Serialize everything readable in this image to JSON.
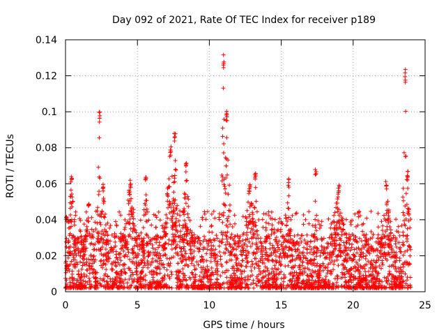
{
  "chart_data": {
    "type": "scatter",
    "title": "Day 092 of 2021, Rate Of TEC Index for receiver p189",
    "xlabel": "GPS time / hours",
    "ylabel": "ROTI / TECUs",
    "xlim": [
      0,
      25
    ],
    "ylim": [
      0,
      0.14
    ],
    "xticks": [
      0,
      5,
      10,
      15,
      20,
      25
    ],
    "yticks": [
      0,
      0.02,
      0.04,
      0.06,
      0.08,
      0.1,
      0.12,
      0.14
    ],
    "xtick_labels": [
      "0",
      "5",
      "10",
      "15",
      "20",
      "25"
    ],
    "ytick_labels": [
      "0",
      "0.02",
      "0.04",
      "0.06",
      "0.08",
      "0.1",
      "0.12",
      "0.14"
    ],
    "grid": true,
    "marker": "+",
    "marker_color": "#ff0000",
    "series": [
      {
        "name": "ROTI",
        "x_range": [
          0,
          24
        ],
        "baseline_max": 0.03,
        "bursts": [
          {
            "x": 0.4,
            "width": 0.3,
            "peak": 0.064
          },
          {
            "x": 1.6,
            "width": 0.4,
            "peak": 0.05
          },
          {
            "x": 2.35,
            "width": 0.15,
            "peak": 0.1
          },
          {
            "x": 2.6,
            "width": 0.3,
            "peak": 0.06
          },
          {
            "x": 4.5,
            "width": 0.5,
            "peak": 0.062
          },
          {
            "x": 5.6,
            "width": 0.3,
            "peak": 0.065
          },
          {
            "x": 7.3,
            "width": 0.4,
            "peak": 0.081
          },
          {
            "x": 7.6,
            "width": 0.2,
            "peak": 0.088
          },
          {
            "x": 8.4,
            "width": 0.4,
            "peak": 0.072
          },
          {
            "x": 11.0,
            "width": 0.15,
            "peak": 0.133
          },
          {
            "x": 11.2,
            "width": 0.25,
            "peak": 0.103
          },
          {
            "x": 12.8,
            "width": 0.5,
            "peak": 0.06
          },
          {
            "x": 13.2,
            "width": 0.2,
            "peak": 0.068
          },
          {
            "x": 15.5,
            "width": 0.3,
            "peak": 0.063
          },
          {
            "x": 17.4,
            "width": 0.1,
            "peak": 0.068
          },
          {
            "x": 19.0,
            "width": 0.6,
            "peak": 0.06
          },
          {
            "x": 22.3,
            "width": 0.4,
            "peak": 0.062
          },
          {
            "x": 23.6,
            "width": 0.15,
            "peak": 0.125
          },
          {
            "x": 23.8,
            "width": 0.3,
            "peak": 0.067
          }
        ]
      }
    ]
  }
}
